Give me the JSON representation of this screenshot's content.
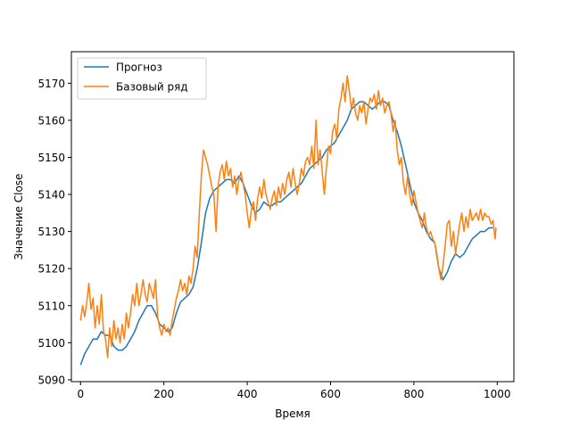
{
  "chart_data": {
    "type": "line",
    "title": "",
    "xlabel": "Время",
    "ylabel": "Значение Close",
    "xlim": [
      -22,
      1040
    ],
    "ylim": [
      5089.5,
      5178.5
    ],
    "xticks": [
      0,
      200,
      400,
      600,
      800,
      1000
    ],
    "yticks": [
      5090,
      5100,
      5110,
      5120,
      5130,
      5140,
      5150,
      5160,
      5170
    ],
    "grid": false,
    "legend": "top-left",
    "series": [
      {
        "name": "Прогноз",
        "color": "#1f77b4",
        "points": [
          [
            0,
            5094
          ],
          [
            10,
            5097
          ],
          [
            20,
            5099
          ],
          [
            30,
            5101
          ],
          [
            40,
            5101
          ],
          [
            50,
            5103
          ],
          [
            60,
            5102
          ],
          [
            70,
            5102
          ],
          [
            80,
            5099
          ],
          [
            90,
            5098
          ],
          [
            100,
            5098
          ],
          [
            110,
            5099
          ],
          [
            120,
            5101
          ],
          [
            130,
            5103
          ],
          [
            140,
            5106
          ],
          [
            150,
            5108
          ],
          [
            160,
            5110
          ],
          [
            170,
            5110
          ],
          [
            180,
            5108
          ],
          [
            190,
            5105
          ],
          [
            200,
            5104
          ],
          [
            210,
            5103
          ],
          [
            220,
            5104
          ],
          [
            230,
            5108
          ],
          [
            240,
            5111
          ],
          [
            250,
            5112
          ],
          [
            260,
            5113
          ],
          [
            270,
            5115
          ],
          [
            280,
            5120
          ],
          [
            290,
            5127
          ],
          [
            300,
            5135
          ],
          [
            310,
            5139
          ],
          [
            320,
            5141
          ],
          [
            330,
            5142
          ],
          [
            340,
            5143
          ],
          [
            350,
            5144
          ],
          [
            360,
            5144
          ],
          [
            370,
            5143
          ],
          [
            380,
            5145
          ],
          [
            390,
            5143
          ],
          [
            400,
            5140
          ],
          [
            410,
            5137
          ],
          [
            420,
            5135
          ],
          [
            430,
            5136
          ],
          [
            440,
            5138
          ],
          [
            450,
            5137
          ],
          [
            460,
            5137
          ],
          [
            470,
            5138
          ],
          [
            480,
            5138
          ],
          [
            490,
            5139
          ],
          [
            500,
            5140
          ],
          [
            510,
            5141
          ],
          [
            520,
            5142
          ],
          [
            530,
            5143
          ],
          [
            540,
            5145
          ],
          [
            550,
            5147
          ],
          [
            560,
            5148
          ],
          [
            570,
            5149
          ],
          [
            580,
            5150
          ],
          [
            590,
            5152
          ],
          [
            600,
            5153
          ],
          [
            610,
            5154
          ],
          [
            620,
            5156
          ],
          [
            630,
            5158
          ],
          [
            640,
            5160
          ],
          [
            650,
            5163
          ],
          [
            660,
            5164
          ],
          [
            670,
            5165
          ],
          [
            680,
            5165
          ],
          [
            690,
            5164
          ],
          [
            700,
            5163
          ],
          [
            710,
            5164
          ],
          [
            720,
            5165
          ],
          [
            730,
            5165
          ],
          [
            740,
            5164
          ],
          [
            750,
            5160
          ],
          [
            760,
            5157
          ],
          [
            770,
            5153
          ],
          [
            780,
            5148
          ],
          [
            790,
            5143
          ],
          [
            800,
            5138
          ],
          [
            810,
            5135
          ],
          [
            820,
            5133
          ],
          [
            830,
            5130
          ],
          [
            840,
            5128
          ],
          [
            850,
            5127
          ],
          [
            860,
            5120
          ],
          [
            870,
            5117
          ],
          [
            880,
            5119
          ],
          [
            890,
            5122
          ],
          [
            900,
            5124
          ],
          [
            910,
            5123
          ],
          [
            920,
            5124
          ],
          [
            930,
            5126
          ],
          [
            940,
            5128
          ],
          [
            950,
            5129
          ],
          [
            960,
            5130
          ],
          [
            970,
            5130
          ],
          [
            980,
            5131
          ],
          [
            990,
            5131
          ]
        ]
      },
      {
        "name": "Базовый ряд",
        "color": "#ff7f0e",
        "points": [
          [
            0,
            5106
          ],
          [
            5,
            5110
          ],
          [
            10,
            5107
          ],
          [
            15,
            5111
          ],
          [
            20,
            5116
          ],
          [
            25,
            5109
          ],
          [
            30,
            5112
          ],
          [
            35,
            5104
          ],
          [
            40,
            5110
          ],
          [
            45,
            5105
          ],
          [
            50,
            5113
          ],
          [
            55,
            5103
          ],
          [
            60,
            5101
          ],
          [
            65,
            5096
          ],
          [
            70,
            5104
          ],
          [
            75,
            5099
          ],
          [
            80,
            5106
          ],
          [
            85,
            5101
          ],
          [
            90,
            5104
          ],
          [
            95,
            5100
          ],
          [
            100,
            5105
          ],
          [
            105,
            5101
          ],
          [
            110,
            5108
          ],
          [
            115,
            5104
          ],
          [
            120,
            5108
          ],
          [
            125,
            5113
          ],
          [
            130,
            5110
          ],
          [
            135,
            5116
          ],
          [
            140,
            5110
          ],
          [
            145,
            5113
          ],
          [
            150,
            5117
          ],
          [
            155,
            5113
          ],
          [
            160,
            5111
          ],
          [
            165,
            5116
          ],
          [
            170,
            5114
          ],
          [
            175,
            5112
          ],
          [
            180,
            5117
          ],
          [
            185,
            5107
          ],
          [
            190,
            5104
          ],
          [
            195,
            5102
          ],
          [
            200,
            5105
          ],
          [
            205,
            5103
          ],
          [
            210,
            5104
          ],
          [
            215,
            5102
          ],
          [
            220,
            5106
          ],
          [
            225,
            5109
          ],
          [
            230,
            5112
          ],
          [
            235,
            5114
          ],
          [
            240,
            5117
          ],
          [
            245,
            5114
          ],
          [
            250,
            5116
          ],
          [
            255,
            5113
          ],
          [
            260,
            5118
          ],
          [
            265,
            5116
          ],
          [
            270,
            5120
          ],
          [
            275,
            5126
          ],
          [
            280,
            5123
          ],
          [
            285,
            5135
          ],
          [
            290,
            5145
          ],
          [
            295,
            5152
          ],
          [
            300,
            5150
          ],
          [
            305,
            5148
          ],
          [
            310,
            5145
          ],
          [
            315,
            5142
          ],
          [
            320,
            5140
          ],
          [
            325,
            5130
          ],
          [
            330,
            5142
          ],
          [
            335,
            5146
          ],
          [
            340,
            5148
          ],
          [
            345,
            5144
          ],
          [
            350,
            5149
          ],
          [
            355,
            5145
          ],
          [
            360,
            5147
          ],
          [
            365,
            5142
          ],
          [
            370,
            5145
          ],
          [
            375,
            5140
          ],
          [
            380,
            5144
          ],
          [
            385,
            5146
          ],
          [
            390,
            5143
          ],
          [
            395,
            5140
          ],
          [
            400,
            5135
          ],
          [
            405,
            5131
          ],
          [
            410,
            5136
          ],
          [
            415,
            5138
          ],
          [
            420,
            5133
          ],
          [
            425,
            5139
          ],
          [
            430,
            5142
          ],
          [
            435,
            5139
          ],
          [
            440,
            5144
          ],
          [
            445,
            5140
          ],
          [
            450,
            5138
          ],
          [
            455,
            5136
          ],
          [
            460,
            5139
          ],
          [
            465,
            5141
          ],
          [
            470,
            5137
          ],
          [
            475,
            5142
          ],
          [
            480,
            5139
          ],
          [
            485,
            5143
          ],
          [
            490,
            5140
          ],
          [
            495,
            5144
          ],
          [
            500,
            5146
          ],
          [
            505,
            5142
          ],
          [
            510,
            5147
          ],
          [
            515,
            5143
          ],
          [
            520,
            5140
          ],
          [
            525,
            5143
          ],
          [
            530,
            5147
          ],
          [
            535,
            5145
          ],
          [
            540,
            5149
          ],
          [
            545,
            5150
          ],
          [
            550,
            5148
          ],
          [
            555,
            5153
          ],
          [
            560,
            5147
          ],
          [
            565,
            5160
          ],
          [
            570,
            5148
          ],
          [
            575,
            5152
          ],
          [
            580,
            5146
          ],
          [
            585,
            5140
          ],
          [
            590,
            5147
          ],
          [
            595,
            5153
          ],
          [
            600,
            5151
          ],
          [
            605,
            5157
          ],
          [
            610,
            5159
          ],
          [
            615,
            5155
          ],
          [
            620,
            5163
          ],
          [
            625,
            5166
          ],
          [
            630,
            5170
          ],
          [
            635,
            5165
          ],
          [
            640,
            5172
          ],
          [
            645,
            5168
          ],
          [
            650,
            5163
          ],
          [
            655,
            5166
          ],
          [
            660,
            5162
          ],
          [
            665,
            5160
          ],
          [
            670,
            5164
          ],
          [
            675,
            5162
          ],
          [
            680,
            5165
          ],
          [
            685,
            5159
          ],
          [
            690,
            5163
          ],
          [
            695,
            5166
          ],
          [
            700,
            5165
          ],
          [
            705,
            5167
          ],
          [
            710,
            5163
          ],
          [
            715,
            5168
          ],
          [
            720,
            5164
          ],
          [
            725,
            5166
          ],
          [
            730,
            5162
          ],
          [
            735,
            5164
          ],
          [
            740,
            5165
          ],
          [
            745,
            5162
          ],
          [
            750,
            5157
          ],
          [
            755,
            5160
          ],
          [
            760,
            5152
          ],
          [
            765,
            5148
          ],
          [
            770,
            5150
          ],
          [
            775,
            5143
          ],
          [
            780,
            5140
          ],
          [
            785,
            5145
          ],
          [
            790,
            5140
          ],
          [
            795,
            5137
          ],
          [
            800,
            5141
          ],
          [
            805,
            5138
          ],
          [
            810,
            5135
          ],
          [
            815,
            5133
          ],
          [
            820,
            5131
          ],
          [
            825,
            5135
          ],
          [
            830,
            5131
          ],
          [
            835,
            5129
          ],
          [
            840,
            5130
          ],
          [
            845,
            5128
          ],
          [
            850,
            5127
          ],
          [
            855,
            5124
          ],
          [
            860,
            5120
          ],
          [
            865,
            5117
          ],
          [
            870,
            5121
          ],
          [
            875,
            5126
          ],
          [
            880,
            5132
          ],
          [
            885,
            5133
          ],
          [
            890,
            5126
          ],
          [
            895,
            5130
          ],
          [
            900,
            5124
          ],
          [
            905,
            5128
          ],
          [
            910,
            5132
          ],
          [
            915,
            5135
          ],
          [
            920,
            5130
          ],
          [
            925,
            5134
          ],
          [
            930,
            5131
          ],
          [
            935,
            5136
          ],
          [
            940,
            5133
          ],
          [
            945,
            5134
          ],
          [
            950,
            5135
          ],
          [
            955,
            5133
          ],
          [
            960,
            5136
          ],
          [
            965,
            5133
          ],
          [
            970,
            5135
          ],
          [
            975,
            5134
          ],
          [
            980,
            5134
          ],
          [
            985,
            5132
          ],
          [
            990,
            5133
          ],
          [
            993,
            5130
          ],
          [
            995,
            5128
          ],
          [
            997,
            5131
          ],
          [
            998,
            5131
          ]
        ]
      }
    ]
  }
}
